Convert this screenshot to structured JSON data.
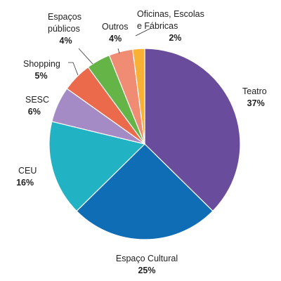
{
  "chart_data": {
    "type": "pie",
    "start_angle_deg": 0,
    "direction": "clockwise",
    "slices": [
      {
        "label_lines": [
          "Teatro"
        ],
        "value": 37,
        "pct_text": "37%",
        "color": "#6a4c9c"
      },
      {
        "label_lines": [
          "Espaço Cultural"
        ],
        "value": 25,
        "pct_text": "25%",
        "color": "#0e6db5"
      },
      {
        "label_lines": [
          "CEU"
        ],
        "value": 16,
        "pct_text": "16%",
        "color": "#21b3c3"
      },
      {
        "label_lines": [
          "SESC"
        ],
        "value": 6,
        "pct_text": "6%",
        "color": "#a58bc6"
      },
      {
        "label_lines": [
          "Shopping"
        ],
        "value": 5,
        "pct_text": "5%",
        "color": "#ec6a4c"
      },
      {
        "label_lines": [
          "Espaços",
          "públicos"
        ],
        "value": 4,
        "pct_text": "4%",
        "color": "#64b448"
      },
      {
        "label_lines": [
          "Outros"
        ],
        "value": 4,
        "pct_text": "4%",
        "color": "#ef8c73"
      },
      {
        "label_lines": [
          "Oficinas, Escolas",
          "e Fábricas"
        ],
        "value": 2,
        "pct_text": "2%",
        "color": "#f8b134"
      }
    ]
  }
}
